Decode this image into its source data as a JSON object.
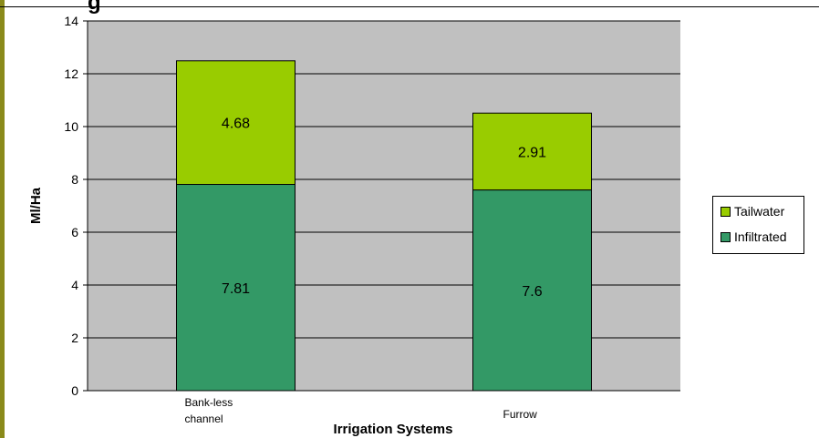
{
  "page": {
    "title_fragment": "g",
    "accent_strip_color": "#8a8a1a"
  },
  "chart_data": {
    "type": "bar",
    "stacked": true,
    "categories": [
      "Bank-less channel",
      "Furrow"
    ],
    "series": [
      {
        "name": "Infiltrated",
        "values": [
          7.81,
          7.6
        ],
        "color": "#339966"
      },
      {
        "name": "Tailwater",
        "values": [
          4.68,
          2.91
        ],
        "color": "#99cc00"
      }
    ],
    "data_labels": [
      [
        "7.81",
        "7.6"
      ],
      [
        "4.68",
        "2.91"
      ]
    ],
    "title": "",
    "xlabel": "Irrigation Systems",
    "ylabel": "Ml/Ha",
    "ylim": [
      0,
      14
    ],
    "yticks": [
      0,
      2,
      4,
      6,
      8,
      10,
      12,
      14
    ],
    "grid": true,
    "plot_background": "#c0c0c0",
    "legend_position": "right"
  },
  "legend": {
    "items": [
      {
        "label": "Tailwater",
        "color": "#99cc00"
      },
      {
        "label": "Infiltrated",
        "color": "#339966"
      }
    ]
  }
}
